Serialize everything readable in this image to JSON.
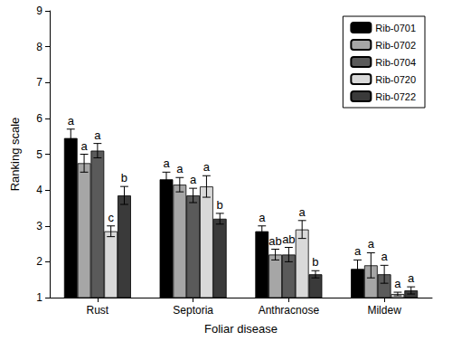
{
  "chart_data": {
    "type": "bar",
    "x_label": "Foliar disease",
    "y_label": "Ranking scale",
    "categories": [
      "Rust",
      "Septoria",
      "Anthracnose",
      "Mildew"
    ],
    "series": [
      {
        "name": "Rib-0701",
        "color": "#000000",
        "values": [
          5.45,
          4.3,
          2.85,
          1.8
        ],
        "errors": [
          0.25,
          0.2,
          0.15,
          0.25
        ],
        "letters": [
          "a",
          "a",
          "a",
          "a"
        ]
      },
      {
        "name": "Rib-0702",
        "color": "#a6a6a6",
        "values": [
          4.75,
          4.15,
          2.2,
          1.9
        ],
        "errors": [
          0.25,
          0.2,
          0.15,
          0.35
        ],
        "letters": [
          "a",
          "a",
          "ab",
          "a"
        ]
      },
      {
        "name": "Rib-0704",
        "color": "#5a5a5a",
        "values": [
          5.1,
          3.85,
          2.2,
          1.65
        ],
        "errors": [
          0.2,
          0.2,
          0.2,
          0.25
        ],
        "letters": [
          "a",
          "a",
          "ab",
          "a"
        ]
      },
      {
        "name": "Rib-0720",
        "color": "#d9d9d9",
        "values": [
          2.85,
          4.1,
          2.9,
          1.1
        ],
        "errors": [
          0.15,
          0.3,
          0.25,
          0.05
        ],
        "letters": [
          "c",
          "a",
          "a",
          "a"
        ]
      },
      {
        "name": "Rib-0722",
        "color": "#3a3a3a",
        "values": [
          3.85,
          3.2,
          1.65,
          1.2
        ],
        "errors": [
          0.25,
          0.15,
          0.1,
          0.1
        ],
        "letters": [
          "b",
          "b",
          "b",
          "a"
        ]
      }
    ],
    "ylim": [
      1,
      9
    ],
    "yticks": [
      1,
      2,
      3,
      4,
      5,
      6,
      7,
      8,
      9
    ],
    "legend": "top-right",
    "grid": false
  }
}
